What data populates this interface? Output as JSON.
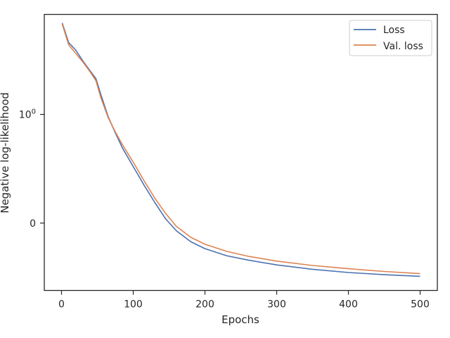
{
  "chart_data": {
    "type": "line",
    "title": "",
    "xlabel": "Epochs",
    "ylabel": "Negative log-likelihood",
    "xlim": [
      -24,
      524
    ],
    "xticks": [
      0,
      100,
      200,
      300,
      400,
      500
    ],
    "xtick_labels": [
      "0",
      "100",
      "200",
      "300",
      "400",
      "500"
    ],
    "yscale": "symlog",
    "ylim": [
      -0.62,
      1.92
    ],
    "yticks": [
      0,
      1
    ],
    "ytick_labels": [
      "0",
      "10^0"
    ],
    "grid": false,
    "legend": "top-right",
    "series": [
      {
        "name": "Loss",
        "color": "#4c72b0",
        "points": [
          [
            1,
            1.84
          ],
          [
            10,
            1.66
          ],
          [
            20,
            1.59
          ],
          [
            30,
            1.49
          ],
          [
            40,
            1.4
          ],
          [
            48,
            1.33
          ],
          [
            55,
            1.18
          ],
          [
            65,
            0.98
          ],
          [
            75,
            0.83
          ],
          [
            85,
            0.69
          ],
          [
            100,
            0.52
          ],
          [
            115,
            0.35
          ],
          [
            130,
            0.19
          ],
          [
            145,
            0.04
          ],
          [
            160,
            -0.07
          ],
          [
            180,
            -0.17
          ],
          [
            200,
            -0.235
          ],
          [
            230,
            -0.3
          ],
          [
            260,
            -0.34
          ],
          [
            300,
            -0.385
          ],
          [
            350,
            -0.425
          ],
          [
            400,
            -0.455
          ],
          [
            450,
            -0.475
          ],
          [
            500,
            -0.49
          ]
        ]
      },
      {
        "name": "Val. loss",
        "color": "#dd8452",
        "points": [
          [
            1,
            1.83
          ],
          [
            10,
            1.64
          ],
          [
            20,
            1.56
          ],
          [
            30,
            1.48
          ],
          [
            40,
            1.39
          ],
          [
            48,
            1.31
          ],
          [
            55,
            1.15
          ],
          [
            65,
            0.97
          ],
          [
            75,
            0.84
          ],
          [
            85,
            0.72
          ],
          [
            100,
            0.56
          ],
          [
            115,
            0.39
          ],
          [
            130,
            0.23
          ],
          [
            145,
            0.09
          ],
          [
            160,
            -0.03
          ],
          [
            180,
            -0.13
          ],
          [
            200,
            -0.195
          ],
          [
            230,
            -0.26
          ],
          [
            260,
            -0.305
          ],
          [
            300,
            -0.35
          ],
          [
            350,
            -0.39
          ],
          [
            400,
            -0.42
          ],
          [
            450,
            -0.445
          ],
          [
            500,
            -0.465
          ]
        ]
      }
    ]
  }
}
